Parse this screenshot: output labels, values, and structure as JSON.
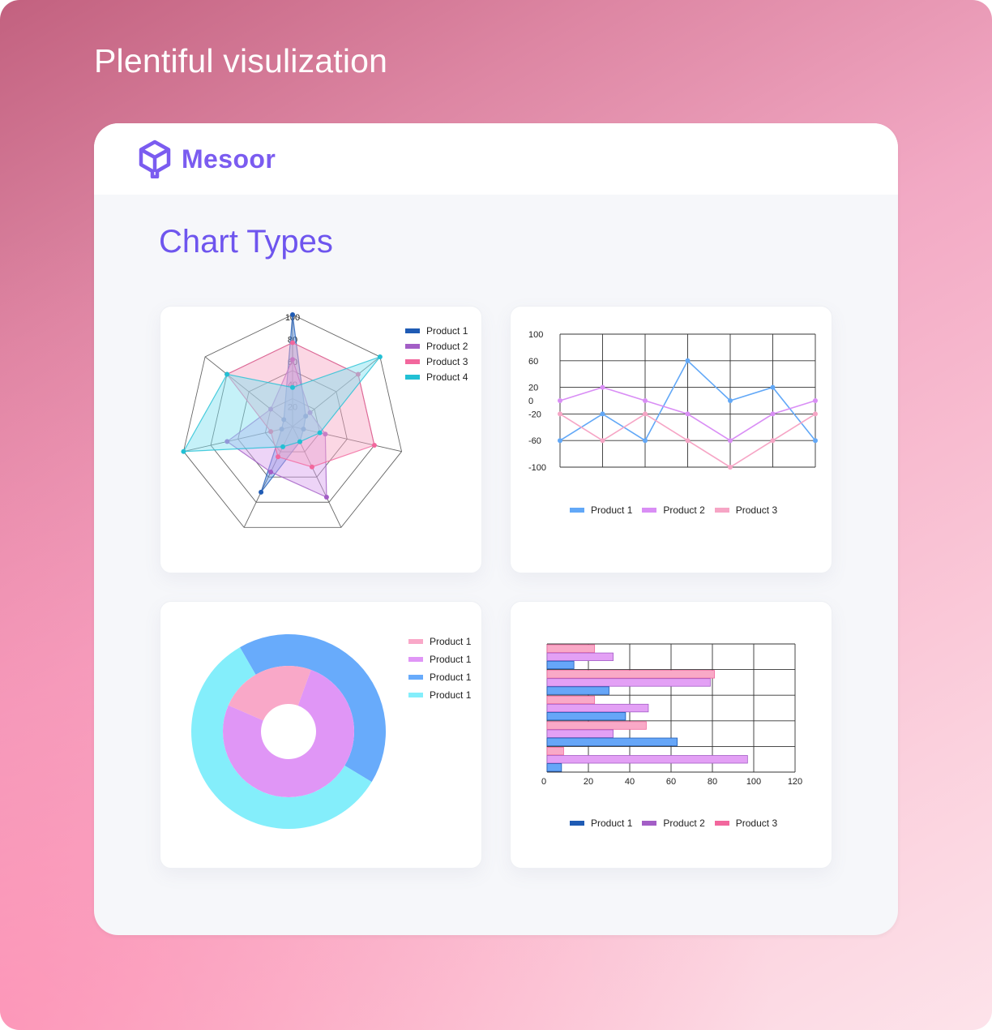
{
  "hero": {
    "title": "Plentiful visulization"
  },
  "app": {
    "logo_text": "Mesoor",
    "section_title": "Chart Types"
  },
  "chart_data": [
    {
      "type": "radar",
      "axes": [
        "",
        "",
        "",
        "",
        "",
        "",
        ""
      ],
      "radial_ticks": [
        "100",
        "80",
        "60",
        "40",
        "20"
      ],
      "rmax": 100,
      "legend_placement": "top-right",
      "series": [
        {
          "name": "Product 1",
          "color": "#1f5bb4",
          "fill": "#5b95e6",
          "values": [
            100,
            15,
            10,
            15,
            65,
            10,
            10
          ]
        },
        {
          "name": "Product 2",
          "color": "#a35ec6",
          "fill": "#d7a0ee",
          "values": [
            60,
            20,
            30,
            70,
            45,
            60,
            25
          ]
        },
        {
          "name": "Product 3",
          "color": "#f2679d",
          "fill": "#f7a6c4",
          "values": [
            75,
            75,
            75,
            40,
            30,
            20,
            75
          ]
        },
        {
          "name": "Product 4",
          "color": "#22c0d4",
          "fill": "#7fdff0",
          "values": [
            35,
            100,
            25,
            15,
            20,
            100,
            75
          ]
        }
      ]
    },
    {
      "type": "line",
      "y_ticks": [
        "100",
        "60",
        "20",
        "0",
        "-20",
        "-60",
        "-100"
      ],
      "ylim": [
        -100,
        100
      ],
      "grid": true,
      "legend_placement": "bottom",
      "categories": [
        "",
        "",
        "",
        "",
        "",
        "",
        ""
      ],
      "series": [
        {
          "name": "Product 1",
          "color": "#62a8f7",
          "values": [
            -60,
            -20,
            -60,
            60,
            0,
            20,
            -60
          ]
        },
        {
          "name": "Product 2",
          "color": "#d98ef5",
          "values": [
            0,
            20,
            0,
            -20,
            -60,
            -20,
            0
          ]
        },
        {
          "name": "Product 3",
          "color": "#f6a5c5",
          "values": [
            -20,
            -60,
            -20,
            -60,
            -100,
            -60,
            -20
          ]
        }
      ]
    },
    {
      "type": "pie",
      "legend_placement": "top-right",
      "legend": [
        {
          "name": "Product 1",
          "color": "#f9a8c8"
        },
        {
          "name": "Product 1",
          "color": "#e096f6"
        },
        {
          "name": "Product 1",
          "color": "#68abfb"
        },
        {
          "name": "Product 1",
          "color": "#84eefb"
        }
      ],
      "rings": [
        {
          "slices": [
            {
              "value": 42,
              "color": "#68abfb"
            },
            {
              "value": 58,
              "color": "#84eefb"
            }
          ]
        },
        {
          "slices": [
            {
              "value": 76,
              "color": "#e096f6"
            },
            {
              "value": 24,
              "color": "#f9a8c8"
            }
          ]
        }
      ]
    },
    {
      "type": "bar",
      "orientation": "horizontal",
      "x_ticks": [
        "0",
        "20",
        "40",
        "60",
        "80",
        "100",
        "120"
      ],
      "xlim": [
        0,
        120
      ],
      "grid": true,
      "legend_placement": "bottom",
      "categories": [
        "",
        "",
        "",
        "",
        ""
      ],
      "series": [
        {
          "name": "Product 1",
          "color": "#1f5bb4",
          "bar_color": "#66a6f8",
          "values": [
            13,
            30,
            38,
            63,
            7
          ]
        },
        {
          "name": "Product 2",
          "color": "#a35ec6",
          "bar_color": "#e3a0f5",
          "values": [
            32,
            79,
            49,
            32,
            97
          ]
        },
        {
          "name": "Product 3",
          "color": "#f2679d",
          "bar_color": "#f9a9c7",
          "values": [
            23,
            81,
            23,
            48,
            8
          ]
        }
      ]
    }
  ]
}
